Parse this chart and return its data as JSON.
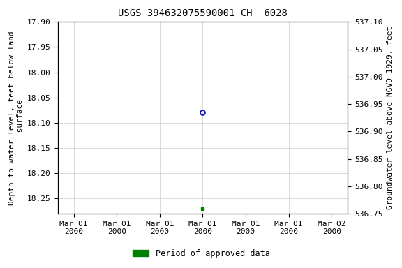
{
  "title": "USGS 394632075590001 CH  6028",
  "ylabel_left": "Depth to water level, feet below land\n surface",
  "ylabel_right": "Groundwater level above NGVD 1929, feet",
  "ylim_left_top": 17.9,
  "ylim_left_bottom": 18.28,
  "ylim_right_top": 537.1,
  "ylim_right_bottom": 536.75,
  "yticks_left": [
    17.9,
    17.95,
    18.0,
    18.05,
    18.1,
    18.15,
    18.2,
    18.25
  ],
  "yticks_right": [
    537.1,
    537.05,
    537.0,
    536.95,
    536.9,
    536.85,
    536.8,
    536.75
  ],
  "data_point_x_hours": 12,
  "data_point_y_circle": 18.08,
  "data_point_y_square": 18.27,
  "circle_color": "#0000cc",
  "square_color": "#008000",
  "grid_color": "#cccccc",
  "bg_color": "#ffffff",
  "title_fontsize": 10,
  "axis_label_fontsize": 8,
  "tick_fontsize": 8,
  "legend_label": "Period of approved data",
  "legend_color": "#008000",
  "xtick_hours": [
    0,
    4,
    8,
    12,
    16,
    20,
    24
  ],
  "xtick_labels": [
    "Mar 01\n2000",
    "Mar 01\n2000",
    "Mar 01\n2000",
    "Mar 01\n2000",
    "Mar 01\n2000",
    "Mar 01\n2000",
    "Mar 02\n2000"
  ]
}
